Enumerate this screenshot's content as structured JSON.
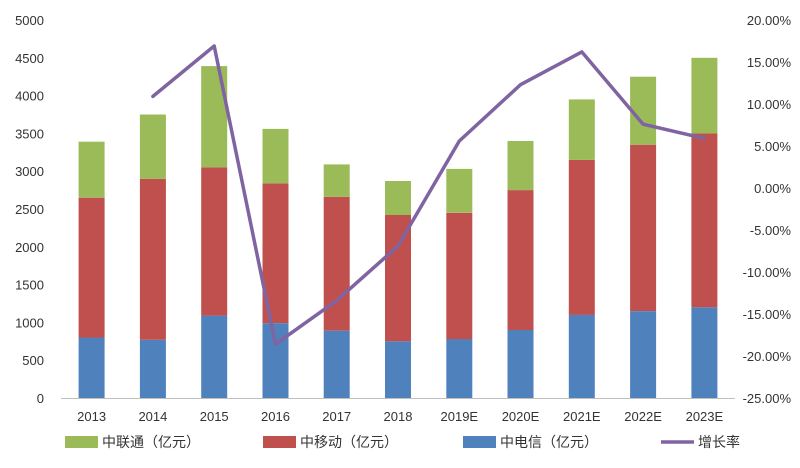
{
  "chart_data": {
    "type": "bar",
    "stacked": true,
    "categories": [
      "2013",
      "2014",
      "2015",
      "2016",
      "2017",
      "2018",
      "2019E",
      "2020E",
      "2021E",
      "2022E",
      "2023E"
    ],
    "series": [
      {
        "name": "中电信（亿元）",
        "color": "#4f81bd",
        "values": [
          800,
          770,
          1090,
          990,
          890,
          750,
          780,
          900,
          1100,
          1150,
          1200
        ]
      },
      {
        "name": "中移动（亿元）",
        "color": "#c0504d",
        "values": [
          1850,
          2130,
          1960,
          1850,
          1770,
          1670,
          1670,
          1850,
          2050,
          2200,
          2300
        ]
      },
      {
        "name": "中联通（亿元）",
        "color": "#9bbb59",
        "values": [
          740,
          850,
          1340,
          720,
          430,
          450,
          580,
          650,
          800,
          900,
          1000
        ]
      }
    ],
    "line": {
      "name": "增长率",
      "color": "#8064a2",
      "values": [
        null,
        10.9,
        16.9,
        -18.6,
        -13.4,
        -6.9,
        5.6,
        12.3,
        16.2,
        7.6,
        5.9
      ]
    },
    "ylim": [
      0,
      5000
    ],
    "yticks": [
      0,
      500,
      1000,
      1500,
      2000,
      2500,
      3000,
      3500,
      4000,
      4500,
      5000
    ],
    "y2lim": [
      -25,
      20
    ],
    "y2ticks": [
      "-25.00%",
      "-20.00%",
      "-15.00%",
      "-10.00%",
      "-5.00%",
      "0.00%",
      "5.00%",
      "10.00%",
      "15.00%",
      "20.00%"
    ],
    "legend": [
      {
        "label": "中联通（亿元）",
        "color": "#9bbb59",
        "kind": "bar"
      },
      {
        "label": "中移动（亿元）",
        "color": "#c0504d",
        "kind": "bar"
      },
      {
        "label": "中电信（亿元）",
        "color": "#4f81bd",
        "kind": "bar"
      },
      {
        "label": "增长率",
        "color": "#8064a2",
        "kind": "line"
      }
    ],
    "legend_position": "bottom",
    "grid": false
  }
}
